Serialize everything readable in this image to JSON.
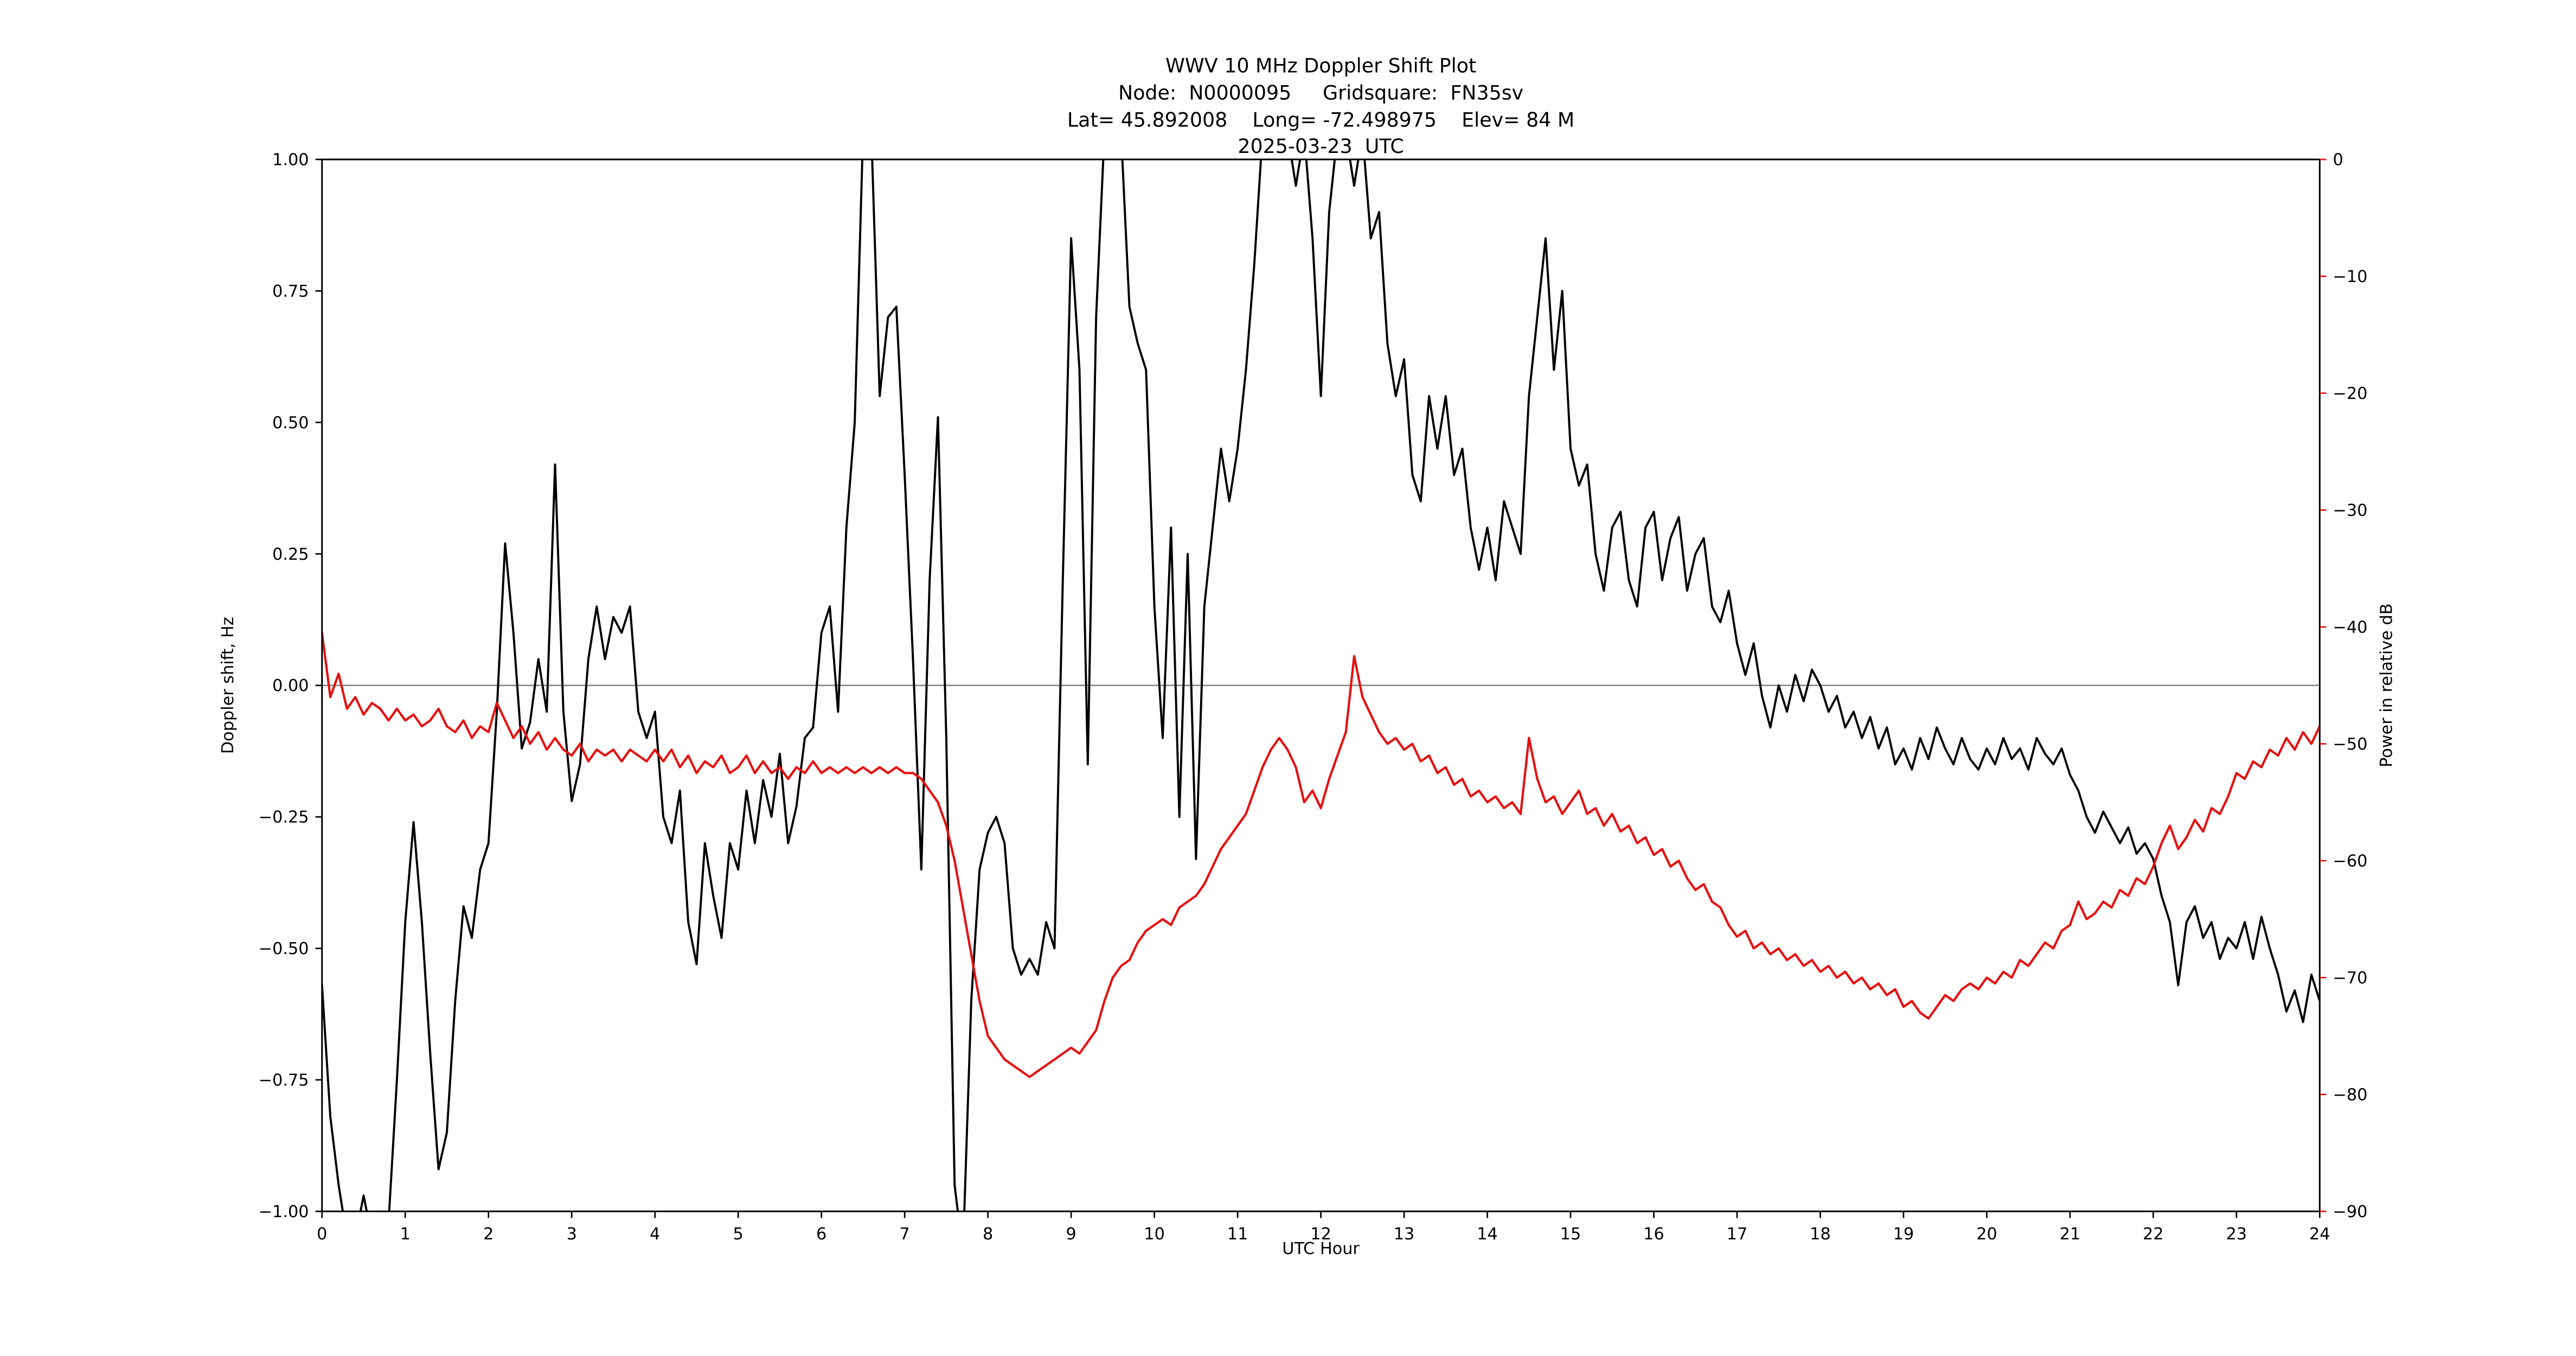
{
  "chart_data": {
    "type": "line",
    "title": "WWV 10 MHz Doppler Shift Plot",
    "subtitle_lines": [
      "Node:  N0000095     Gridsquare:  FN35sv",
      "Lat= 45.892008    Long= -72.498975    Elev= 84 M",
      "2025-03-23  UTC"
    ],
    "xlabel": "UTC Hour",
    "ylabel_left": "Doppler shift, Hz",
    "ylabel_right": "Power in relative dB",
    "xlim": [
      0,
      24
    ],
    "ylim_left": [
      -1.0,
      1.0
    ],
    "ylim_right": [
      -90,
      0
    ],
    "xticks": [
      0,
      1,
      2,
      3,
      4,
      5,
      6,
      7,
      8,
      9,
      10,
      11,
      12,
      13,
      14,
      15,
      16,
      17,
      18,
      19,
      20,
      21,
      22,
      23,
      24
    ],
    "xtick_labels": [
      "0",
      "1",
      "2",
      "3",
      "4",
      "5",
      "6",
      "7",
      "8",
      "9",
      "10",
      "11",
      "12",
      "13",
      "14",
      "15",
      "16",
      "17",
      "18",
      "19",
      "20",
      "21",
      "22",
      "23",
      "24"
    ],
    "yticks_left": [
      -1.0,
      -0.75,
      -0.5,
      -0.25,
      0.0,
      0.25,
      0.5,
      0.75,
      1.0
    ],
    "ytick_left_labels": [
      "−1.00",
      "−0.75",
      "−0.50",
      "−0.25",
      "0.00",
      "0.25",
      "0.50",
      "0.75",
      "1.00"
    ],
    "yticks_right": [
      0,
      -10,
      -20,
      -30,
      -40,
      -50,
      -60,
      -70,
      -80,
      -90
    ],
    "ytick_right_labels": [
      "0",
      "−10",
      "−20",
      "−30",
      "−40",
      "−50",
      "−60",
      "−70",
      "−80",
      "−90"
    ],
    "zero_line": {
      "y": 0.0,
      "color": "#808080"
    },
    "colors": {
      "doppler": "#000000",
      "power": "#e51010",
      "axis": "#000000",
      "background": "#ffffff"
    },
    "x_start": 0.0,
    "x_step": 0.1,
    "x_unit": "UTC hour",
    "series": [
      {
        "name": "Doppler shift, Hz",
        "axis": "left",
        "color": "#000000",
        "y": [
          -0.57,
          -0.82,
          -0.95,
          -1.05,
          -1.05,
          -0.97,
          -1.05,
          -1.08,
          -1.02,
          -0.75,
          -0.45,
          -0.26,
          -0.45,
          -0.7,
          -0.92,
          -0.85,
          -0.6,
          -0.42,
          -0.48,
          -0.35,
          -0.3,
          -0.05,
          0.27,
          0.1,
          -0.12,
          -0.07,
          0.05,
          -0.05,
          0.42,
          -0.05,
          -0.22,
          -0.15,
          0.05,
          0.15,
          0.05,
          0.13,
          0.1,
          0.15,
          -0.05,
          -0.1,
          -0.05,
          -0.25,
          -0.3,
          -0.2,
          -0.45,
          -0.53,
          -0.3,
          -0.4,
          -0.48,
          -0.3,
          -0.35,
          -0.2,
          -0.3,
          -0.18,
          -0.25,
          -0.13,
          -0.3,
          -0.23,
          -0.1,
          -0.08,
          0.1,
          0.15,
          -0.05,
          0.3,
          0.5,
          1.05,
          1.05,
          0.55,
          0.7,
          0.72,
          0.4,
          0.05,
          -0.35,
          0.2,
          0.51,
          -0.1,
          -0.95,
          -1.08,
          -0.6,
          -0.35,
          -0.28,
          -0.25,
          -0.3,
          -0.5,
          -0.55,
          -0.52,
          -0.55,
          -0.45,
          -0.5,
          0.2,
          0.85,
          0.6,
          -0.15,
          0.7,
          1.05,
          1.05,
          1.05,
          0.72,
          0.65,
          0.6,
          0.15,
          -0.1,
          0.3,
          -0.25,
          0.25,
          -0.33,
          0.15,
          0.3,
          0.45,
          0.35,
          0.45,
          0.6,
          0.8,
          1.05,
          1.05,
          1.05,
          1.05,
          0.95,
          1.05,
          0.85,
          0.55,
          0.9,
          1.05,
          1.05,
          0.95,
          1.05,
          0.85,
          0.9,
          0.65,
          0.55,
          0.62,
          0.4,
          0.35,
          0.55,
          0.45,
          0.55,
          0.4,
          0.45,
          0.3,
          0.22,
          0.3,
          0.2,
          0.35,
          0.3,
          0.25,
          0.55,
          0.7,
          0.85,
          0.6,
          0.75,
          0.45,
          0.38,
          0.42,
          0.25,
          0.18,
          0.3,
          0.33,
          0.2,
          0.15,
          0.3,
          0.33,
          0.2,
          0.28,
          0.32,
          0.18,
          0.25,
          0.28,
          0.15,
          0.12,
          0.18,
          0.08,
          0.02,
          0.08,
          -0.02,
          -0.08,
          0.0,
          -0.05,
          0.02,
          -0.03,
          0.03,
          0.0,
          -0.05,
          -0.02,
          -0.08,
          -0.05,
          -0.1,
          -0.06,
          -0.12,
          -0.08,
          -0.15,
          -0.12,
          -0.16,
          -0.1,
          -0.14,
          -0.08,
          -0.12,
          -0.15,
          -0.1,
          -0.14,
          -0.16,
          -0.12,
          -0.15,
          -0.1,
          -0.14,
          -0.12,
          -0.16,
          -0.1,
          -0.13,
          -0.15,
          -0.12,
          -0.17,
          -0.2,
          -0.25,
          -0.28,
          -0.24,
          -0.27,
          -0.3,
          -0.27,
          -0.32,
          -0.3,
          -0.33,
          -0.4,
          -0.45,
          -0.57,
          -0.45,
          -0.42,
          -0.48,
          -0.45,
          -0.52,
          -0.48,
          -0.5,
          -0.45,
          -0.52,
          -0.44,
          -0.5,
          -0.55,
          -0.62,
          -0.58,
          -0.64,
          -0.55,
          -0.6
        ]
      },
      {
        "name": "Power in relative dB",
        "axis": "right",
        "color": "#e51010",
        "y": [
          -40.5,
          -46,
          -44,
          -47,
          -46,
          -47.5,
          -46.5,
          -47,
          -48,
          -47,
          -48,
          -47.5,
          -48.5,
          -48,
          -47,
          -48.5,
          -49,
          -48,
          -49.5,
          -48.5,
          -49,
          -46.5,
          -48,
          -49.5,
          -48.5,
          -50,
          -49,
          -50.5,
          -49.5,
          -50.5,
          -51,
          -50,
          -51.5,
          -50.5,
          -51,
          -50.5,
          -51.5,
          -50.5,
          -51,
          -51.5,
          -50.5,
          -51.5,
          -50.5,
          -52,
          -51,
          -52.5,
          -51.5,
          -52,
          -51,
          -52.5,
          -52,
          -51,
          -52.5,
          -51.5,
          -52.5,
          -52,
          -53,
          -52,
          -52.5,
          -51.5,
          -52.5,
          -52,
          -52.5,
          -52,
          -52.5,
          -52,
          -52.5,
          -52,
          -52.5,
          -52,
          -52.5,
          -52.5,
          -53,
          -54,
          -55,
          -57,
          -60,
          -64,
          -68,
          -72,
          -75,
          -76,
          -77,
          -77.5,
          -78,
          -78.5,
          -78,
          -77.5,
          -77,
          -76.5,
          -76,
          -76.5,
          -75.5,
          -74.5,
          -72,
          -70,
          -69,
          -68.5,
          -67,
          -66,
          -65.5,
          -65,
          -65.5,
          -64,
          -63.5,
          -63,
          -62,
          -60.5,
          -59,
          -58,
          -57,
          -56,
          -54,
          -52,
          -50.5,
          -49.5,
          -50.5,
          -52,
          -55,
          -54,
          -55.5,
          -53,
          -51,
          -49,
          -42.5,
          -46,
          -47.5,
          -49,
          -50,
          -49.5,
          -50.5,
          -50,
          -51.5,
          -51,
          -52.5,
          -52,
          -53.5,
          -53,
          -54.5,
          -54,
          -55,
          -54.5,
          -55.5,
          -55,
          -56,
          -49.5,
          -53,
          -55,
          -54.5,
          -56,
          -55,
          -54,
          -56,
          -55.5,
          -57,
          -56,
          -57.5,
          -57,
          -58.5,
          -58,
          -59.5,
          -59,
          -60.5,
          -60,
          -61.5,
          -62.5,
          -62,
          -63.5,
          -64,
          -65.5,
          -66.5,
          -66,
          -67.5,
          -67,
          -68,
          -67.5,
          -68.5,
          -68,
          -69,
          -68.5,
          -69.5,
          -69,
          -70,
          -69.5,
          -70.5,
          -70,
          -71,
          -70.5,
          -71.5,
          -71,
          -72.5,
          -72,
          -73,
          -73.5,
          -72.5,
          -71.5,
          -72,
          -71,
          -70.5,
          -71,
          -70,
          -70.5,
          -69.5,
          -70,
          -68.5,
          -69,
          -68,
          -67,
          -67.5,
          -66,
          -65.5,
          -63.5,
          -65,
          -64.5,
          -63.5,
          -64,
          -62.5,
          -63,
          -61.5,
          -62,
          -60.5,
          -58.5,
          -57,
          -59,
          -58,
          -56.5,
          -57.5,
          -55.5,
          -56,
          -54.5,
          -52.5,
          -53,
          -51.5,
          -52,
          -50.5,
          -51,
          -49.5,
          -50.5,
          -49,
          -50,
          -48.5
        ]
      }
    ]
  }
}
